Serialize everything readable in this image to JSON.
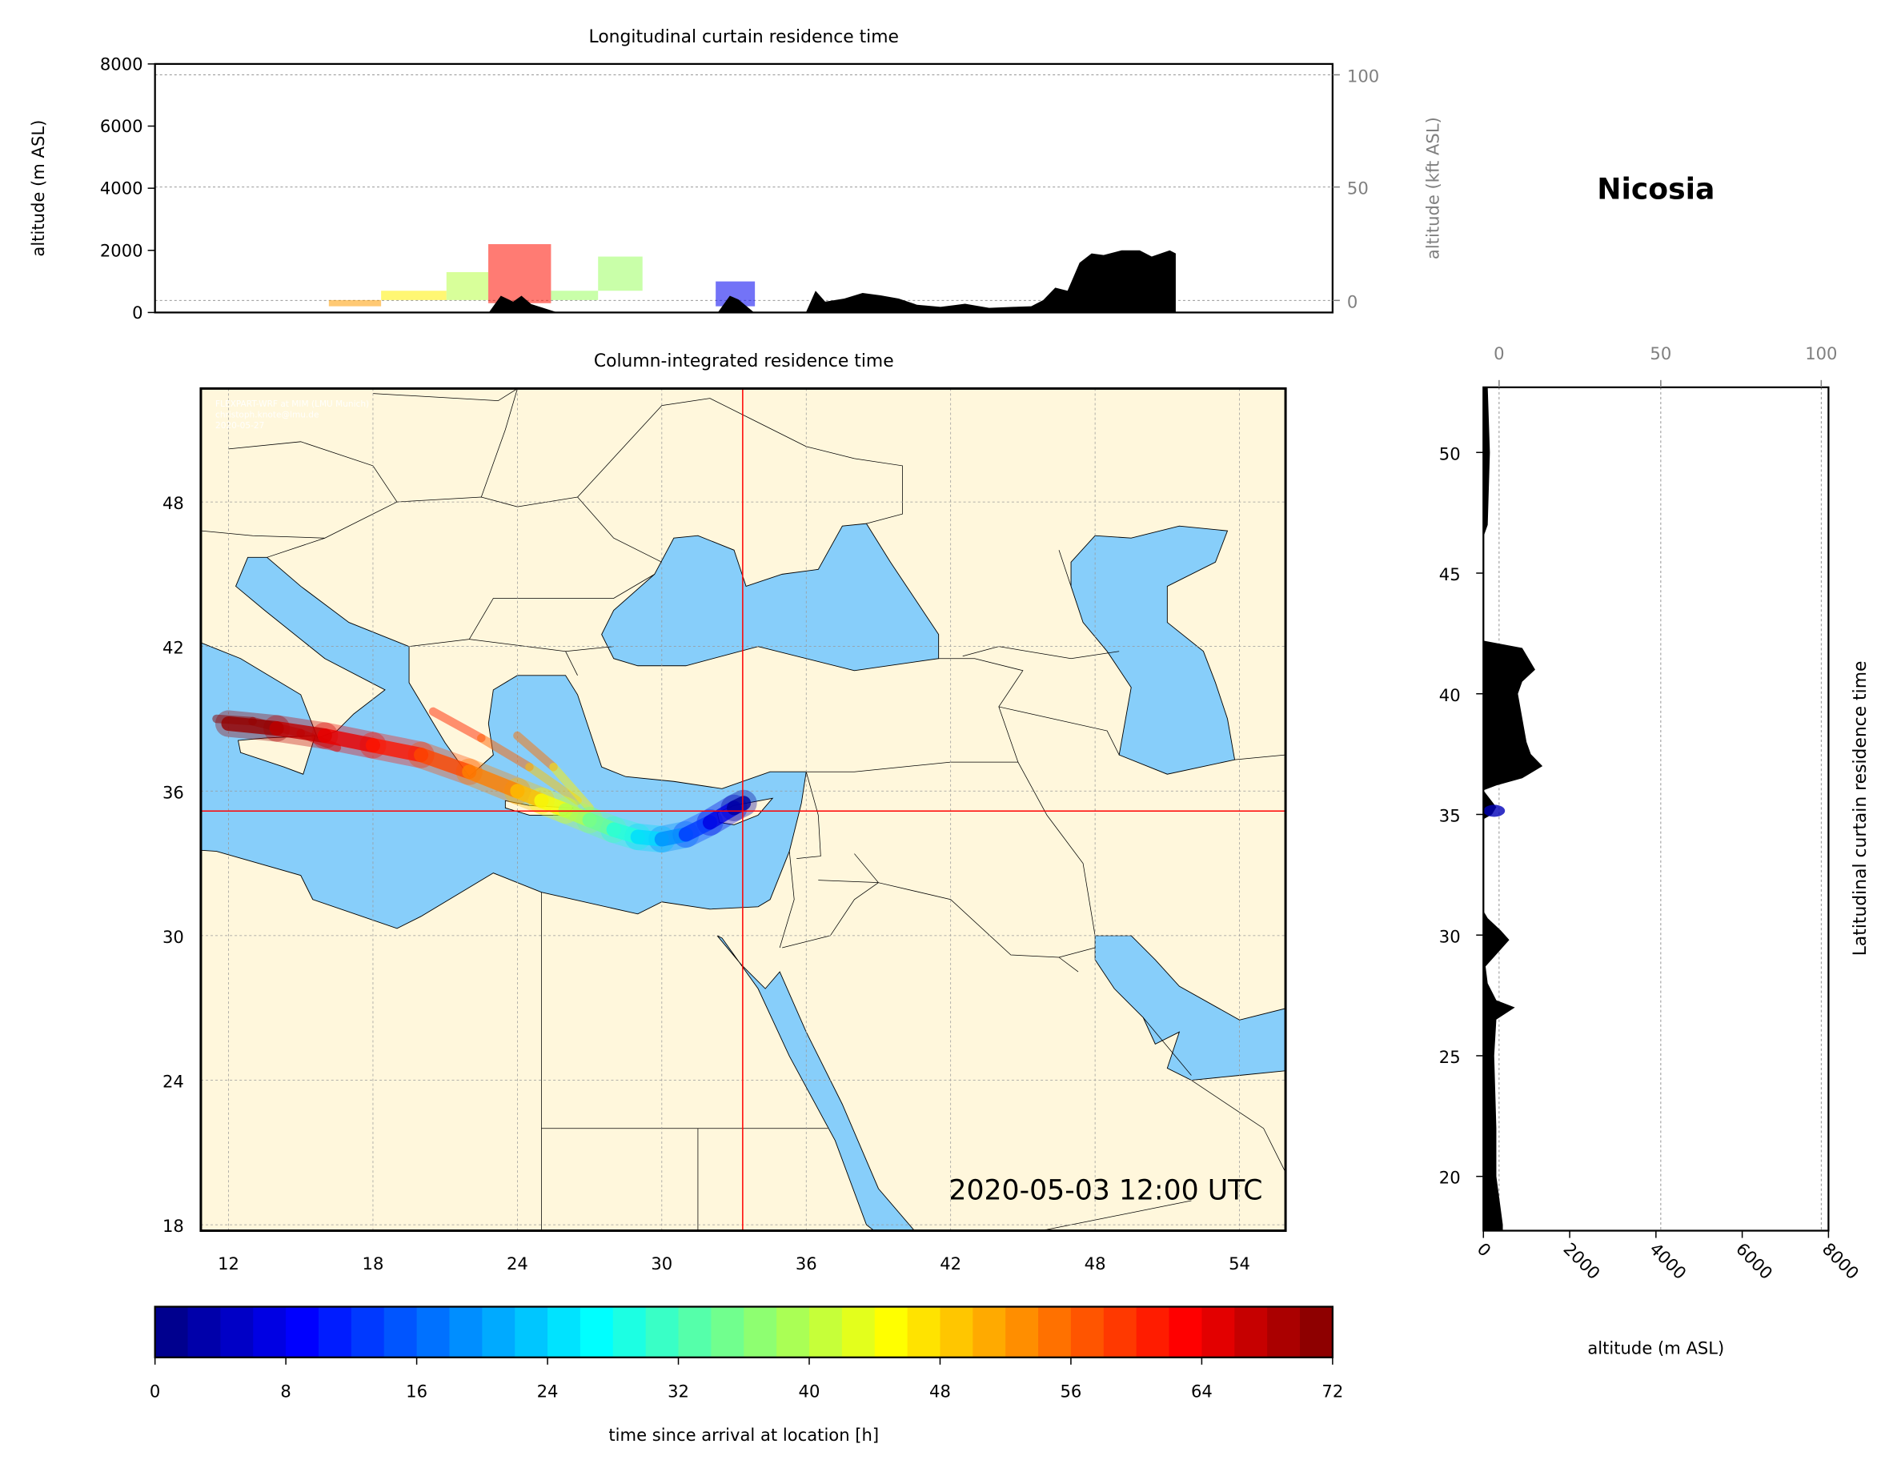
{
  "location_name": "Nicosia",
  "chart_data": [
    {
      "id": "longitudinal",
      "type": "area",
      "title": "Longitudinal curtain residence time",
      "ylabel": "altitude (m ASL)",
      "ylabel_right": "altitude (kft ASL)",
      "ylim": [
        0,
        8000
      ],
      "yticks": [
        "0",
        "2000",
        "4000",
        "6000",
        "8000"
      ],
      "yticks_right": [
        "0",
        "50",
        "100"
      ],
      "xlim": [
        10.85,
        55.9
      ],
      "grid": true,
      "terrain_color": "#000000",
      "terrain": [
        [
          23.62,
          0
        ],
        [
          24.08,
          540
        ],
        [
          24.55,
          350
        ],
        [
          24.87,
          540
        ],
        [
          25.24,
          270
        ],
        [
          25.7,
          150
        ],
        [
          26.25,
          0
        ],
        [
          32.38,
          0
        ],
        [
          32.84,
          540
        ],
        [
          33.17,
          420
        ],
        [
          33.77,
          0
        ],
        [
          35.75,
          0
        ],
        [
          36.12,
          700
        ],
        [
          36.49,
          350
        ],
        [
          37.22,
          450
        ],
        [
          37.92,
          630
        ],
        [
          38.61,
          550
        ],
        [
          39.3,
          450
        ],
        [
          40.0,
          250
        ],
        [
          40.9,
          180
        ],
        [
          41.84,
          280
        ],
        [
          42.76,
          150
        ],
        [
          43.68,
          180
        ],
        [
          44.37,
          200
        ],
        [
          44.83,
          400
        ],
        [
          45.29,
          800
        ],
        [
          45.76,
          700
        ],
        [
          46.22,
          1600
        ],
        [
          46.68,
          1900
        ],
        [
          47.14,
          1850
        ],
        [
          47.83,
          2000
        ],
        [
          48.52,
          2000
        ],
        [
          48.98,
          1800
        ],
        [
          49.67,
          2000
        ],
        [
          49.9,
          1900
        ],
        [
          49.9,
          0
        ]
      ],
      "residence": [
        {
          "lon": [
            17.5,
            19.5
          ],
          "alt": [
            200,
            400
          ],
          "hours": 52
        },
        {
          "lon": [
            19.5,
            22.0
          ],
          "alt": [
            400,
            700
          ],
          "hours": 46
        },
        {
          "lon": [
            22.0,
            23.6
          ],
          "alt": [
            400,
            1300
          ],
          "hours": 40
        },
        {
          "lon": [
            23.6,
            26.0
          ],
          "alt": [
            300,
            2200
          ],
          "hours": 62
        },
        {
          "lon": [
            26.0,
            27.8
          ],
          "alt": [
            400,
            700
          ],
          "hours": 38
        },
        {
          "lon": [
            27.8,
            29.5
          ],
          "alt": [
            700,
            1800
          ],
          "hours": 38
        },
        {
          "lon": [
            32.3,
            33.8
          ],
          "alt": [
            200,
            1000
          ],
          "hours": 8
        }
      ]
    },
    {
      "id": "column",
      "type": "heatmap",
      "title": "Column-integrated residence time",
      "xlim": [
        10.85,
        55.9
      ],
      "ylim": [
        17.75,
        52.7
      ],
      "xticks": [
        "12",
        "18",
        "24",
        "30",
        "36",
        "42",
        "48",
        "54"
      ],
      "yticks": [
        "18",
        "24",
        "30",
        "36",
        "42",
        "48"
      ],
      "grid": true,
      "release_point": {
        "lon": 33.36,
        "lat": 35.17
      },
      "timestamp": "2020-05-03 12:00 UTC",
      "watermark": [
        "FLEXPART-WRF at MIM (LMU Munich)",
        "christoph.knote@lmu.de",
        "2020-05-27"
      ],
      "land_color": "#FFF7DC",
      "sea_color": "#87CEFA",
      "crosshair_color": "#FF0000",
      "plume": [
        [
          33.4,
          35.5,
          0
        ],
        [
          33.0,
          35.3,
          4
        ],
        [
          32.0,
          34.7,
          10
        ],
        [
          31.0,
          34.2,
          16
        ],
        [
          30.0,
          34.0,
          22
        ],
        [
          29.0,
          34.1,
          27
        ],
        [
          28.0,
          34.4,
          32
        ],
        [
          27.0,
          34.8,
          37
        ],
        [
          26.0,
          35.2,
          42
        ],
        [
          25.0,
          35.6,
          47
        ],
        [
          24.0,
          36.0,
          52
        ],
        [
          22.0,
          36.8,
          56
        ],
        [
          20.0,
          37.5,
          60
        ],
        [
          18.0,
          37.9,
          63
        ],
        [
          16.0,
          38.3,
          66
        ],
        [
          14.0,
          38.6,
          69
        ],
        [
          12.0,
          38.8,
          72
        ]
      ],
      "plume_branches": [
        [
          [
            26.5,
            35.6,
            44
          ],
          [
            24.5,
            37.0,
            54
          ],
          [
            22.5,
            38.2,
            58
          ],
          [
            20.5,
            39.3,
            62
          ]
        ],
        [
          [
            27.0,
            35.3,
            40
          ],
          [
            25.5,
            37.0,
            52
          ],
          [
            24.0,
            38.3,
            58
          ]
        ],
        [
          [
            16.5,
            37.8,
            64
          ],
          [
            15.0,
            38.4,
            68
          ],
          [
            13.0,
            38.9,
            71
          ],
          [
            11.5,
            39.0,
            72
          ]
        ]
      ]
    },
    {
      "id": "latitudinal",
      "type": "area",
      "ylabel": "Latitudinal curtain residence time",
      "xlabel": "altitude (m ASL)",
      "xlim": [
        0,
        8000
      ],
      "xticks": [
        "0",
        "2000",
        "4000",
        "6000",
        "8000"
      ],
      "xticks_top": [
        "0",
        "50",
        "100"
      ],
      "ylim": [
        17.75,
        52.7
      ],
      "yticks": [
        "20",
        "25",
        "30",
        "35",
        "40",
        "45",
        "50"
      ],
      "grid": true,
      "terrain": [
        [
          52.7,
          100
        ],
        [
          50,
          150
        ],
        [
          47,
          100
        ],
        [
          46.5,
          0
        ],
        [
          42.2,
          0
        ],
        [
          41.9,
          900
        ],
        [
          41,
          1200
        ],
        [
          40.5,
          900
        ],
        [
          40,
          800
        ],
        [
          39,
          900
        ],
        [
          38,
          1000
        ],
        [
          37.5,
          1100
        ],
        [
          37,
          1370
        ],
        [
          36.5,
          900
        ],
        [
          36.2,
          300
        ],
        [
          36,
          0
        ],
        [
          35.3,
          300
        ],
        [
          35,
          200
        ],
        [
          34.8,
          0
        ],
        [
          31,
          0
        ],
        [
          30.7,
          100
        ],
        [
          30.2,
          400
        ],
        [
          29.8,
          600
        ],
        [
          29.2,
          300
        ],
        [
          28.7,
          50
        ],
        [
          28,
          100
        ],
        [
          27.3,
          300
        ],
        [
          27,
          730
        ],
        [
          26.5,
          300
        ],
        [
          25,
          250
        ],
        [
          22,
          300
        ],
        [
          20,
          300
        ],
        [
          18,
          450
        ],
        [
          17.75,
          450
        ]
      ],
      "residence": [
        {
          "lat": [
            34.9,
            35.4
          ],
          "alt": [
            0,
            500
          ],
          "hours": 4
        }
      ]
    },
    {
      "id": "colorbar",
      "type": "colorbar",
      "xlabel": "time since arrival at location [h]",
      "range": [
        0,
        72
      ],
      "ticks": [
        "0",
        "8",
        "16",
        "24",
        "32",
        "40",
        "48",
        "56",
        "64",
        "72"
      ],
      "colormap": "jet_r"
    }
  ]
}
